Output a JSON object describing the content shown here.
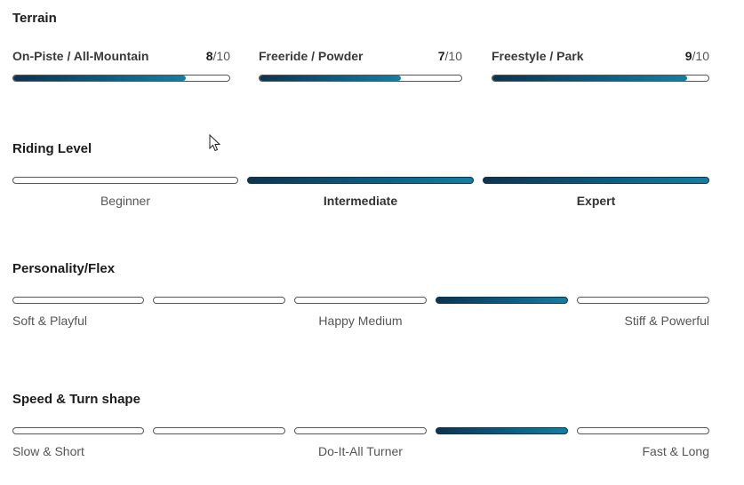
{
  "terrain": {
    "title": "Terrain",
    "items": [
      {
        "label": "On-Piste / All-Mountain",
        "score": "8",
        "max": "/10",
        "value": 0.8
      },
      {
        "label": "Freeride / Powder",
        "score": "7",
        "max": "/10",
        "value": 0.7
      },
      {
        "label": "Freestyle / Park",
        "score": "9",
        "max": "/10",
        "value": 0.9
      }
    ]
  },
  "riding_level": {
    "title": "Riding Level",
    "levels": [
      {
        "label": "Beginner",
        "active": false
      },
      {
        "label": "Intermediate",
        "active": true
      },
      {
        "label": "Expert",
        "active": true
      }
    ]
  },
  "flex": {
    "title": "Personality/Flex",
    "active_segments": [
      false,
      false,
      false,
      true,
      false
    ],
    "labels": {
      "left": "Soft & Playful",
      "middle": "Happy Medium",
      "right": "Stiff & Powerful"
    }
  },
  "speed": {
    "title": "Speed & Turn shape",
    "active_segments": [
      false,
      false,
      false,
      true,
      false
    ],
    "labels": {
      "left": "Slow & Short",
      "middle": "Do-It-All Turner",
      "right": "Fast & Long"
    }
  },
  "colors": {
    "accent_dark": "#0d3350",
    "accent_light": "#137fa4"
  }
}
